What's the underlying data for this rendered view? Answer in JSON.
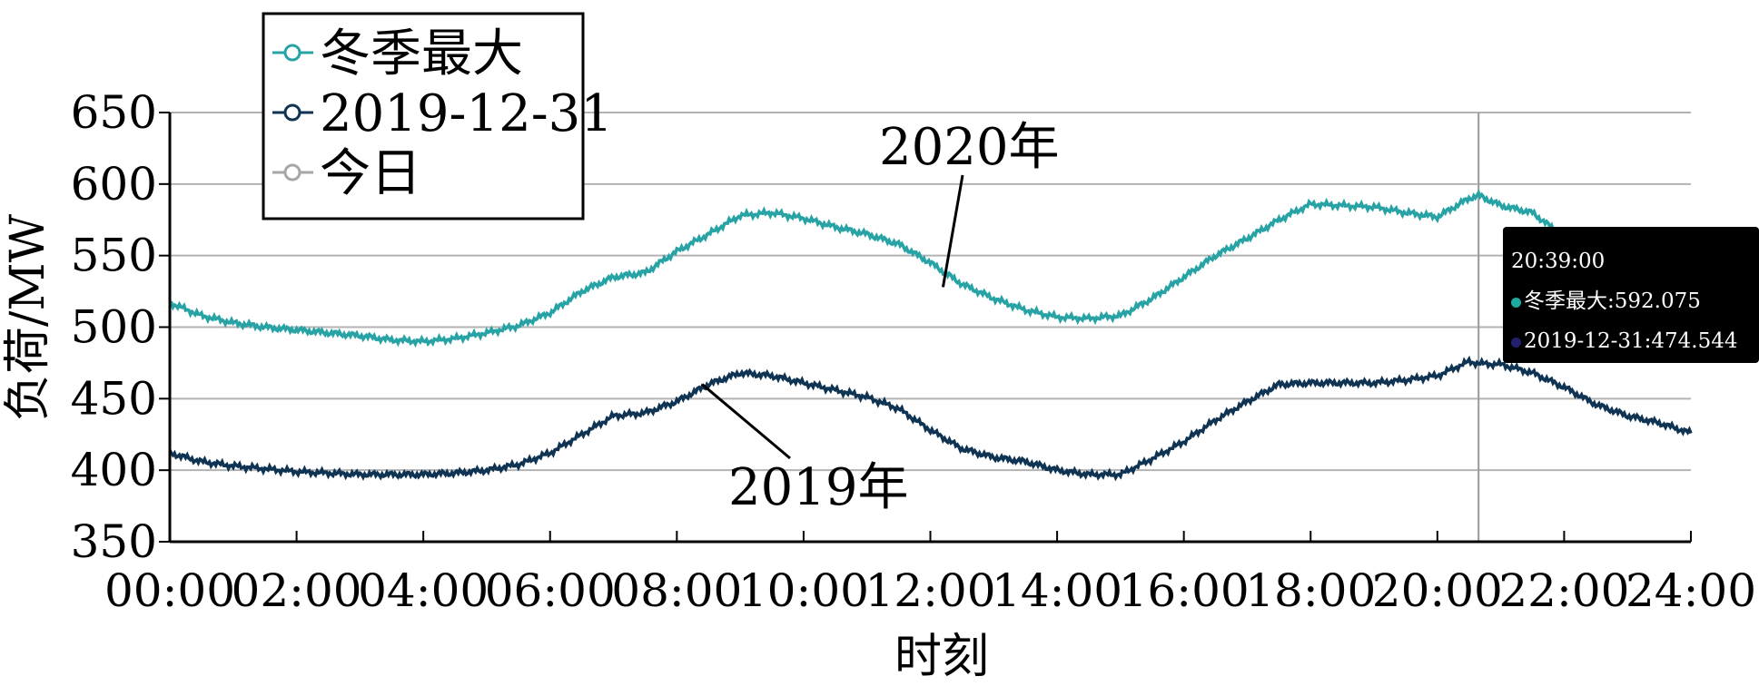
{
  "colors": {
    "winter_max": "#27A3A5",
    "y2019": "#0F3352",
    "today": "#A6A6A6",
    "tooltip_dot_winter": "#1EAAA0",
    "tooltip_dot_2019": "#22206E"
  },
  "tooltip": {
    "time": "20:39:00",
    "winter_text": "冬季最大:592.075",
    "y2019_text": "2019-12-31:474.544"
  },
  "chart_data": {
    "type": "line",
    "title": "",
    "xlabel": "时刻",
    "ylabel": "负荷/MW",
    "ylim": [
      350,
      650
    ],
    "yticks": [
      350,
      400,
      450,
      500,
      550,
      600,
      650
    ],
    "xlim": [
      0,
      24
    ],
    "xtick_labels": [
      "00:00",
      "02:00",
      "04:00",
      "06:00",
      "08:00",
      "10:00",
      "12:00",
      "14:00",
      "16:00",
      "18:00",
      "20:00",
      "22:00",
      "24:00"
    ],
    "grid": "horizontal",
    "legend_position": "top-left",
    "crosshair_x": 20.65,
    "series": [
      {
        "name": "冬季最大",
        "color_key": "winter_max",
        "x": [
          0,
          0.5,
          1,
          1.5,
          2,
          2.5,
          3,
          3.5,
          4,
          4.5,
          5,
          5.5,
          6,
          6.5,
          7,
          7.5,
          8,
          8.5,
          9,
          9.5,
          10,
          10.5,
          11,
          11.5,
          12,
          12.5,
          13,
          13.5,
          14,
          14.5,
          15,
          15.5,
          16,
          16.5,
          17,
          17.5,
          18,
          18.5,
          19,
          19.5,
          20,
          20.5,
          20.65,
          21,
          21.5,
          21.85
        ],
        "values": [
          517,
          508,
          503,
          500,
          498,
          496,
          494,
          491,
          490,
          492,
          496,
          501,
          510,
          525,
          535,
          538,
          553,
          565,
          578,
          580,
          576,
          570,
          565,
          558,
          545,
          530,
          520,
          512,
          507,
          506,
          508,
          520,
          535,
          550,
          562,
          575,
          586,
          585,
          584,
          580,
          577,
          590,
          592.075,
          585,
          580,
          568
        ]
      },
      {
        "name": "2019-12-31",
        "color_key": "y2019",
        "x": [
          0,
          0.5,
          1,
          1.5,
          2,
          2.5,
          3,
          3.5,
          4,
          4.5,
          5,
          5.5,
          6,
          6.5,
          7,
          7.5,
          8,
          8.5,
          9,
          9.5,
          10,
          10.5,
          11,
          11.5,
          12,
          12.5,
          13,
          13.5,
          14,
          14.5,
          15,
          15.5,
          16,
          16.5,
          17,
          17.5,
          18,
          18.5,
          19,
          19.5,
          20,
          20.5,
          20.65,
          21,
          21.5,
          22,
          22.5,
          23,
          23.5,
          24
        ],
        "values": [
          412,
          406,
          403,
          401,
          399,
          398,
          397,
          397,
          397,
          398,
          400,
          404,
          412,
          425,
          438,
          440,
          448,
          460,
          468,
          466,
          461,
          456,
          451,
          443,
          428,
          415,
          409,
          406,
          400,
          397,
          397,
          408,
          420,
          435,
          448,
          460,
          461,
          461,
          461,
          463,
          466,
          476,
          474.544,
          474,
          468,
          458,
          446,
          438,
          433,
          426
        ]
      },
      {
        "name": "今日",
        "color_key": "today",
        "x": [],
        "values": []
      }
    ],
    "annotations": [
      {
        "text": "2020年",
        "target_x": 12.2,
        "target_y": 528
      },
      {
        "text": "2019年",
        "target_x": 8.4,
        "target_y": 460
      }
    ]
  }
}
